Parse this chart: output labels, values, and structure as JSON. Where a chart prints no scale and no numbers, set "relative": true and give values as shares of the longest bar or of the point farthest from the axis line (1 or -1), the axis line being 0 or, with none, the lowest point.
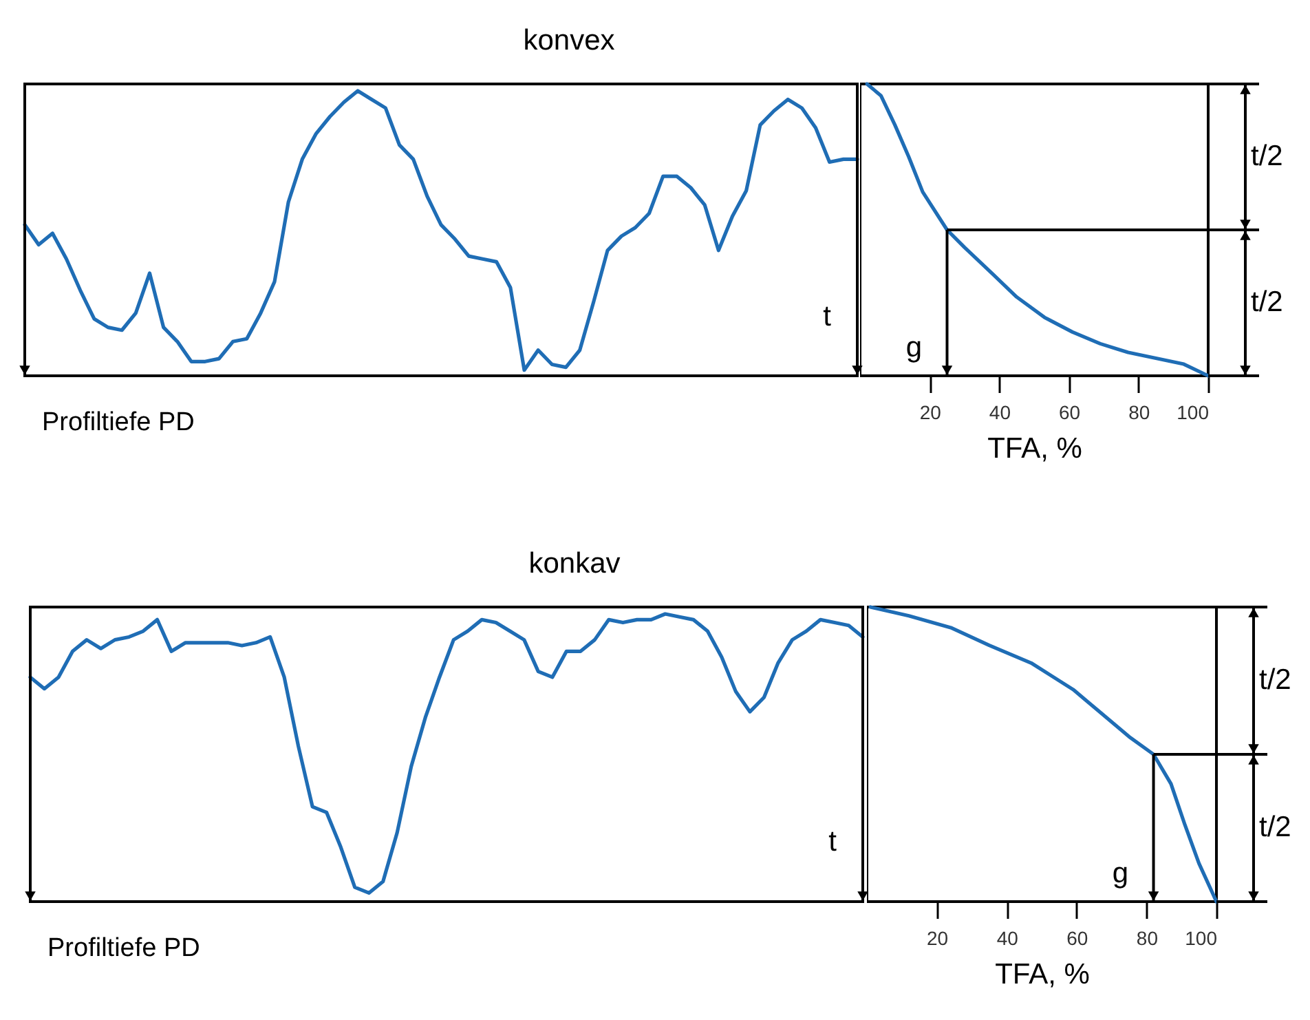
{
  "chart_data": [
    {
      "type": "line",
      "title": "konvex",
      "xlabel": "Profiltiefe PD",
      "relative": true,
      "annotations": [
        "t"
      ],
      "categories": [
        null,
        null,
        null,
        null,
        null,
        null,
        null,
        null,
        null,
        null,
        null,
        null,
        null,
        null,
        null,
        null,
        null,
        null,
        null,
        null,
        null,
        null,
        null,
        null,
        null,
        null,
        null,
        null,
        null,
        null,
        null,
        null,
        null,
        null,
        null,
        null,
        null,
        null,
        null,
        null,
        null,
        null,
        null,
        null,
        null,
        null,
        null,
        null,
        null,
        null,
        null,
        null,
        null,
        null,
        null,
        null,
        null,
        null,
        null,
        null,
        null
      ],
      "series": [
        {
          "color": "#1f6db5",
          "values": [
            0.53,
            0.46,
            0.5,
            0.41,
            0.3,
            0.2,
            0.17,
            0.16,
            0.22,
            0.36,
            0.17,
            0.12,
            0.05,
            0.05,
            0.06,
            0.12,
            0.13,
            0.22,
            0.33,
            0.61,
            0.76,
            0.85,
            0.91,
            0.96,
            1,
            0.97,
            0.94,
            0.81,
            0.76,
            0.63,
            0.53,
            0.48,
            0.42,
            0.41,
            0.4,
            0.31,
            0.02,
            0.09,
            0.04,
            0.03,
            0.09,
            0.26,
            0.44,
            0.49,
            0.52,
            0.57,
            0.7,
            0.7,
            0.66,
            0.6,
            0.44,
            0.56,
            0.65,
            0.88,
            0.93,
            0.97,
            0.94,
            0.87,
            0.75,
            0.76,
            0.76
          ]
        }
      ]
    },
    {
      "type": "line",
      "xlabel": "TFA, %",
      "relative": true,
      "tick_labels": "x",
      "xlim": [
        0,
        100
      ],
      "xticks": [
        20,
        40,
        60,
        80,
        100
      ],
      "annotations": [
        "t/2",
        "t/2",
        "g"
      ],
      "ref_lines": [
        {
          "axis": "y",
          "value": 0.5
        }
      ],
      "series": [
        {
          "color": "#1f6db5",
          "x": [
            2,
            6,
            10,
            14,
            18,
            25,
            30,
            38,
            45,
            53,
            61,
            69,
            77,
            85,
            93,
            100
          ],
          "values": [
            1,
            0.96,
            0.86,
            0.75,
            0.63,
            0.5,
            0.44,
            0.35,
            0.27,
            0.2,
            0.15,
            0.11,
            0.08,
            0.06,
            0.04,
            0
          ]
        }
      ]
    },
    {
      "type": "line",
      "title": "konkav",
      "xlabel": "Profiltiefe PD",
      "relative": true,
      "annotations": [
        "t"
      ],
      "categories": [
        null,
        null,
        null,
        null,
        null,
        null,
        null,
        null,
        null,
        null,
        null,
        null,
        null,
        null,
        null,
        null,
        null,
        null,
        null,
        null,
        null,
        null,
        null,
        null,
        null,
        null,
        null,
        null,
        null,
        null,
        null,
        null,
        null,
        null,
        null,
        null,
        null,
        null,
        null,
        null,
        null,
        null,
        null,
        null,
        null,
        null,
        null,
        null,
        null,
        null,
        null,
        null,
        null,
        null,
        null,
        null,
        null,
        null,
        null,
        null
      ],
      "series": [
        {
          "color": "#1f6db5",
          "values": [
            0.78,
            0.74,
            0.78,
            0.87,
            0.91,
            0.88,
            0.91,
            0.92,
            0.94,
            0.98,
            0.87,
            0.9,
            0.9,
            0.9,
            0.9,
            0.89,
            0.9,
            0.92,
            0.78,
            0.54,
            0.33,
            0.31,
            0.19,
            0.05,
            0.03,
            0.07,
            0.24,
            0.47,
            0.64,
            0.78,
            0.91,
            0.94,
            0.98,
            0.97,
            0.94,
            0.91,
            0.8,
            0.78,
            0.87,
            0.87,
            0.91,
            0.98,
            0.97,
            0.98,
            0.98,
            1,
            0.99,
            0.98,
            0.94,
            0.85,
            0.73,
            0.66,
            0.71,
            0.83,
            0.91,
            0.94,
            0.98,
            0.97,
            0.96,
            0.92
          ]
        }
      ]
    },
    {
      "type": "line",
      "xlabel": "TFA, %",
      "relative": true,
      "tick_labels": "x",
      "xlim": [
        0,
        100
      ],
      "xticks": [
        20,
        40,
        60,
        80,
        100
      ],
      "annotations": [
        "t/2",
        "t/2",
        "g"
      ],
      "ref_lines": [
        {
          "axis": "y",
          "value": 0.5
        }
      ],
      "series": [
        {
          "color": "#1f6db5",
          "x": [
            1,
            12,
            24,
            35,
            47,
            59,
            67,
            75,
            82,
            87,
            91,
            95,
            100
          ],
          "values": [
            1,
            0.97,
            0.93,
            0.87,
            0.81,
            0.72,
            0.64,
            0.56,
            0.5,
            0.4,
            0.26,
            0.13,
            0
          ]
        }
      ]
    }
  ]
}
